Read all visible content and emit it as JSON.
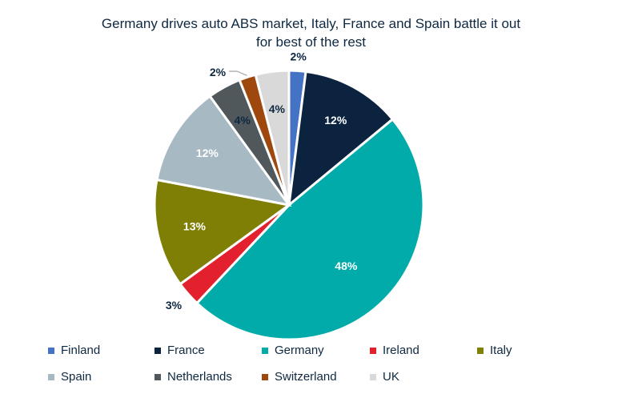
{
  "chart_data": {
    "type": "pie",
    "title_line1": "Germany drives auto ABS market, Italy, France and Spain battle it out",
    "title_line2": "for best of the rest",
    "slices": [
      {
        "name": "Finland",
        "value": 2,
        "label": "2%",
        "color": "#4472C4",
        "label_color": "#0E2841",
        "outside": true
      },
      {
        "name": "France",
        "value": 12,
        "label": "12%",
        "color": "#0C2340",
        "label_color": "#ffffff",
        "outside": false
      },
      {
        "name": "Germany",
        "value": 48,
        "label": "48%",
        "color": "#00ABA9",
        "label_color": "#ffffff",
        "outside": false
      },
      {
        "name": "Ireland",
        "value": 3,
        "label": "3%",
        "color": "#E3202E",
        "label_color": "#0E2841",
        "outside": true
      },
      {
        "name": "Italy",
        "value": 13,
        "label": "13%",
        "color": "#7F7F05",
        "label_color": "#ffffff",
        "outside": false
      },
      {
        "name": "Spain",
        "value": 12,
        "label": "12%",
        "color": "#A7B9C3",
        "label_color": "#ffffff",
        "outside": false
      },
      {
        "name": "Netherlands",
        "value": 4,
        "label": "4%",
        "color": "#50585C",
        "label_color": "#0E2841",
        "outside": false
      },
      {
        "name": "Switzerland",
        "value": 2,
        "label": "2%",
        "color": "#9E480E",
        "label_color": "#0E2841",
        "outside": true
      },
      {
        "name": "UK",
        "value": 4,
        "label": "4%",
        "color": "#D9D9D9",
        "label_color": "#0E2841",
        "outside": false
      }
    ],
    "legend_order": [
      "Finland",
      "France",
      "Germany",
      "Ireland",
      "Italy",
      "Spain",
      "Netherlands",
      "Switzerland",
      "UK"
    ],
    "legend_placement": "bottom"
  }
}
